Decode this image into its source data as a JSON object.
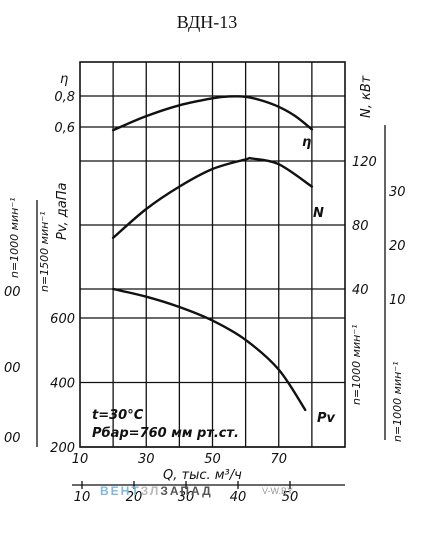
{
  "title": "ВДН-13",
  "chart_data": {
    "type": "line",
    "x_axis": {
      "label": "Q, тыс. м³/ч",
      "ticks": [
        10,
        30,
        50,
        70
      ],
      "grid": [
        20,
        30,
        40,
        50,
        60,
        70,
        80
      ],
      "lim": [
        10,
        90
      ]
    },
    "x_axis_secondary": {
      "ticks": [
        10,
        20,
        30,
        40,
        50
      ],
      "lim": [
        10,
        55
      ]
    },
    "eta_axis": {
      "label": "η",
      "ticks": [
        {
          "v": 0.8,
          "label": "0,8"
        },
        {
          "v": 0.6,
          "label": "0,6"
        }
      ]
    },
    "pv_axis": {
      "label": "Pv, даПа",
      "ticks": [
        200,
        400,
        600
      ],
      "lim": [
        200,
        800
      ]
    },
    "pv_axis_1000": {
      "label": "n=1000 мин⁻¹",
      "ticks": [
        {
          "v": 300,
          "label": "00"
        },
        {
          "v": 500,
          "label": "00"
        },
        {
          "v": 700,
          "label": "00"
        }
      ]
    },
    "pv_axis_1500_label": "n=1500 мин⁻¹",
    "n_axis": {
      "label": "N, кВт",
      "ticks": [
        40,
        80,
        120
      ]
    },
    "n_axis_1000": {
      "label": "n=1000 мин⁻¹",
      "ticks": [
        10,
        20,
        30
      ]
    },
    "n_axis_1000_mid_label": "n=1000 мин⁻¹",
    "annotations": [
      "t=30°C",
      "Pбар=760 мм рт.ст."
    ],
    "series": [
      {
        "name": "η",
        "x": [
          20,
          30,
          40,
          50,
          55,
          60,
          65,
          70,
          75,
          80
        ],
        "y": [
          0.58,
          0.67,
          0.74,
          0.785,
          0.797,
          0.795,
          0.77,
          0.73,
          0.67,
          0.585
        ]
      },
      {
        "name": "N",
        "x": [
          20,
          30,
          40,
          50,
          60,
          62,
          70,
          80
        ],
        "y": [
          72,
          90,
          104,
          115,
          121,
          121.5,
          118,
          104
        ]
      },
      {
        "name": "Pv",
        "x": [
          20,
          30,
          40,
          50,
          60,
          70,
          78
        ],
        "y": [
          690,
          666,
          634,
          592,
          532,
          440,
          315
        ]
      }
    ]
  },
  "watermark": {
    "brand_left": "ВЕНТ",
    "brand_mid": "ЗЛ",
    "brand_right": "ЗАПАД",
    "site": "V-W.BY"
  }
}
